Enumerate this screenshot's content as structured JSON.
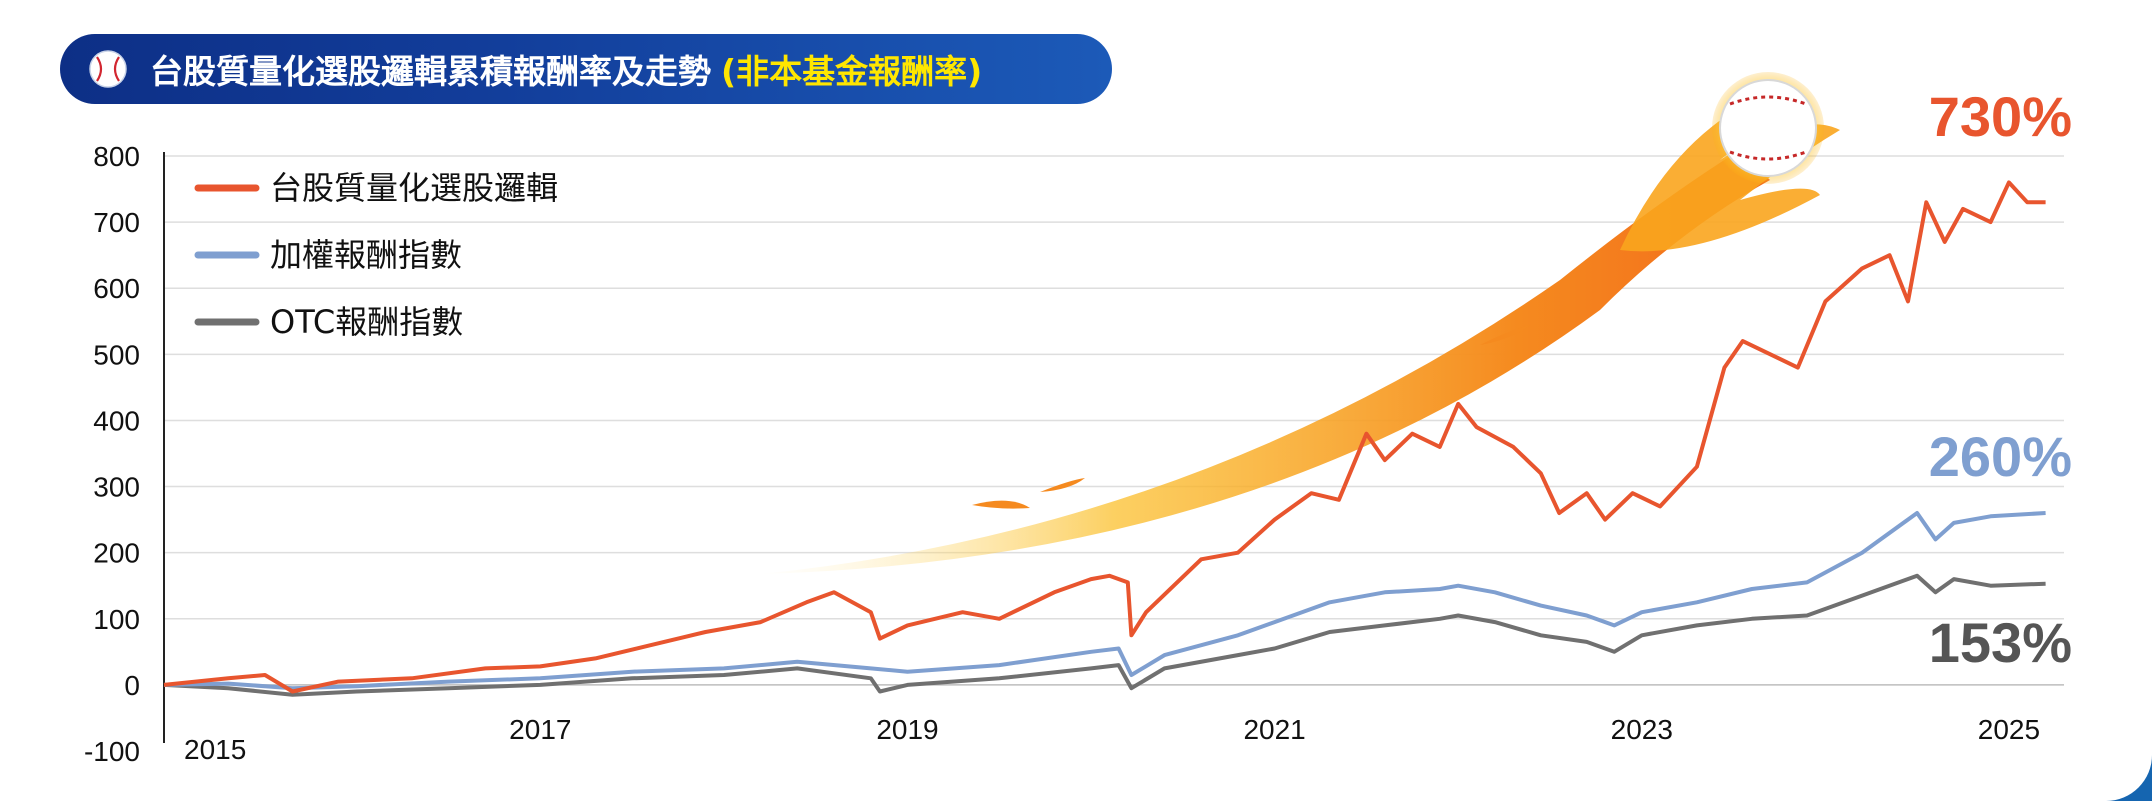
{
  "title": {
    "main": "台股質量化選股邏輯累積報酬率及走勢",
    "sub": "(非本基金報酬率)",
    "icon": "baseball-icon"
  },
  "colors": {
    "background_frame": "#1565b0",
    "title_bar": "#0d2f86",
    "title_highlight": "#ffe600",
    "series_quality": "#e8552e",
    "series_taiex": "#7f9fd0",
    "series_otc": "#707070"
  },
  "chart_data": {
    "type": "line",
    "title": "台股質量化選股邏輯累積報酬率及走勢",
    "xlabel": "",
    "ylabel": "",
    "x_ticks": [
      "2015",
      "2017",
      "2019",
      "2021",
      "2023",
      "2025"
    ],
    "y_ticks": [
      "800",
      "700",
      "600",
      "500",
      "400",
      "300",
      "200",
      "100",
      "0",
      "-100"
    ],
    "xlim": [
      2014.95,
      2025.3
    ],
    "ylim": [
      -100,
      800
    ],
    "grid": true,
    "legend_position": "top-left",
    "legend": [
      "台股質量化選股邏輯",
      "加權報酬指數",
      "OTC報酬指數"
    ],
    "end_labels": [
      "730%",
      "260%",
      "153%"
    ],
    "series": [
      {
        "name": "台股質量化選股邏輯",
        "color": "#e8552e",
        "end_label": "730%",
        "x": [
          2014.95,
          2015.3,
          2015.5,
          2015.65,
          2015.9,
          2016.3,
          2016.7,
          2017.0,
          2017.3,
          2017.6,
          2017.9,
          2018.2,
          2018.45,
          2018.6,
          2018.8,
          2018.85,
          2019.0,
          2019.3,
          2019.5,
          2019.8,
          2020.0,
          2020.1,
          2020.2,
          2020.22,
          2020.3,
          2020.6,
          2020.8,
          2021.0,
          2021.2,
          2021.35,
          2021.5,
          2021.6,
          2021.75,
          2021.9,
          2022.0,
          2022.1,
          2022.3,
          2022.45,
          2022.55,
          2022.7,
          2022.8,
          2022.95,
          2023.1,
          2023.3,
          2023.45,
          2023.55,
          2023.7,
          2023.85,
          2024.0,
          2024.2,
          2024.35,
          2024.45,
          2024.55,
          2024.65,
          2024.75,
          2024.9,
          2025.0,
          2025.1,
          2025.2
        ],
        "values": [
          0,
          10,
          15,
          -10,
          5,
          10,
          25,
          28,
          40,
          60,
          80,
          95,
          125,
          140,
          110,
          70,
          90,
          110,
          100,
          140,
          160,
          165,
          155,
          75,
          110,
          190,
          200,
          250,
          290,
          280,
          380,
          340,
          380,
          360,
          425,
          390,
          360,
          320,
          260,
          290,
          250,
          290,
          270,
          330,
          480,
          520,
          500,
          480,
          580,
          630,
          650,
          580,
          730,
          670,
          720,
          700,
          760,
          730,
          730
        ]
      },
      {
        "name": "加權報酬指數",
        "color": "#7f9fd0",
        "end_label": "260%",
        "x": [
          2014.95,
          2015.3,
          2015.65,
          2016.0,
          2016.5,
          2017.0,
          2017.5,
          2018.0,
          2018.4,
          2018.8,
          2019.0,
          2019.5,
          2020.0,
          2020.15,
          2020.22,
          2020.4,
          2020.8,
          2021.0,
          2021.3,
          2021.6,
          2021.9,
          2022.0,
          2022.2,
          2022.45,
          2022.7,
          2022.85,
          2023.0,
          2023.3,
          2023.6,
          2023.9,
          2024.0,
          2024.2,
          2024.5,
          2024.6,
          2024.7,
          2024.9,
          2025.2
        ],
        "values": [
          0,
          2,
          -5,
          -2,
          5,
          10,
          20,
          25,
          35,
          25,
          20,
          30,
          50,
          55,
          15,
          45,
          75,
          95,
          125,
          140,
          145,
          150,
          140,
          120,
          105,
          90,
          110,
          125,
          145,
          155,
          170,
          200,
          260,
          220,
          245,
          255,
          260
        ]
      },
      {
        "name": "OTC報酬指數",
        "color": "#707070",
        "end_label": "153%",
        "x": [
          2014.95,
          2015.3,
          2015.65,
          2016.0,
          2016.5,
          2017.0,
          2017.5,
          2018.0,
          2018.4,
          2018.8,
          2018.85,
          2019.0,
          2019.5,
          2020.0,
          2020.15,
          2020.22,
          2020.4,
          2020.8,
          2021.0,
          2021.3,
          2021.6,
          2021.9,
          2022.0,
          2022.2,
          2022.45,
          2022.7,
          2022.85,
          2023.0,
          2023.3,
          2023.6,
          2023.9,
          2024.0,
          2024.2,
          2024.5,
          2024.6,
          2024.7,
          2024.9,
          2025.2
        ],
        "values": [
          0,
          -5,
          -15,
          -10,
          -5,
          0,
          10,
          15,
          25,
          10,
          -10,
          0,
          10,
          25,
          30,
          -5,
          25,
          45,
          55,
          80,
          90,
          100,
          105,
          95,
          75,
          65,
          50,
          75,
          90,
          100,
          105,
          115,
          135,
          165,
          140,
          160,
          150,
          153
        ]
      }
    ]
  }
}
